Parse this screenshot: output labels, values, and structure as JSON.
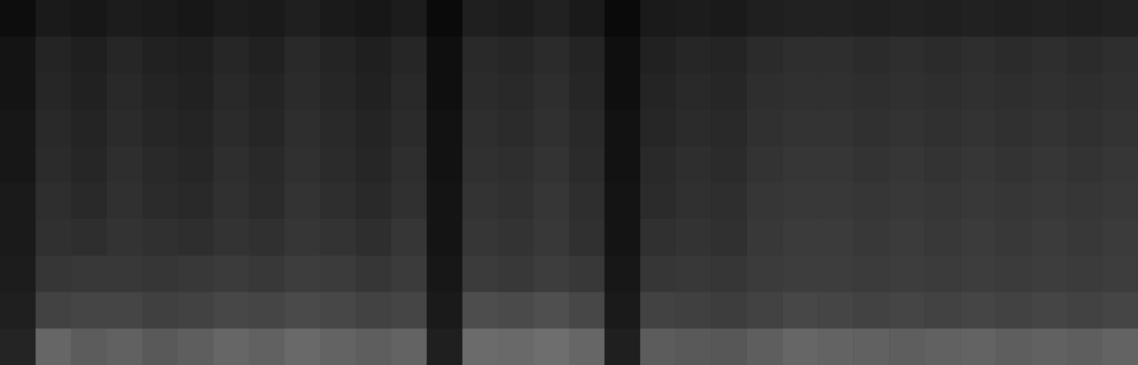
{
  "chart_data": {
    "type": "heatmap",
    "tick_labels": false,
    "zlim": [
      0,
      1
    ],
    "cells": [
      [
        0.05,
        0.1,
        0.09,
        0.11,
        0.1,
        0.09,
        0.11,
        0.1,
        0.12,
        0.1,
        0.09,
        0.11,
        0.04,
        0.12,
        0.11,
        0.13,
        0.1,
        0.04,
        0.1,
        0.11,
        0.1,
        0.12,
        0.13,
        0.13,
        0.12,
        0.13,
        0.12,
        0.13,
        0.12,
        0.13,
        0.12,
        0.13
      ],
      [
        0.08,
        0.14,
        0.12,
        0.15,
        0.13,
        0.12,
        0.15,
        0.13,
        0.16,
        0.14,
        0.12,
        0.15,
        0.06,
        0.16,
        0.15,
        0.17,
        0.14,
        0.06,
        0.13,
        0.15,
        0.14,
        0.17,
        0.18,
        0.18,
        0.17,
        0.18,
        0.17,
        0.18,
        0.17,
        0.18,
        0.17,
        0.18
      ],
      [
        0.08,
        0.15,
        0.13,
        0.16,
        0.14,
        0.13,
        0.16,
        0.14,
        0.17,
        0.15,
        0.13,
        0.16,
        0.06,
        0.17,
        0.16,
        0.18,
        0.15,
        0.06,
        0.14,
        0.16,
        0.15,
        0.18,
        0.19,
        0.19,
        0.18,
        0.19,
        0.18,
        0.19,
        0.18,
        0.19,
        0.18,
        0.19
      ],
      [
        0.09,
        0.16,
        0.14,
        0.17,
        0.15,
        0.14,
        0.17,
        0.15,
        0.18,
        0.16,
        0.14,
        0.17,
        0.07,
        0.18,
        0.17,
        0.19,
        0.16,
        0.07,
        0.15,
        0.17,
        0.16,
        0.19,
        0.2,
        0.2,
        0.19,
        0.2,
        0.19,
        0.2,
        0.19,
        0.2,
        0.19,
        0.2
      ],
      [
        0.09,
        0.17,
        0.15,
        0.18,
        0.16,
        0.15,
        0.18,
        0.16,
        0.19,
        0.17,
        0.15,
        0.18,
        0.07,
        0.19,
        0.18,
        0.2,
        0.17,
        0.07,
        0.16,
        0.18,
        0.17,
        0.2,
        0.21,
        0.21,
        0.2,
        0.21,
        0.2,
        0.21,
        0.2,
        0.21,
        0.2,
        0.21
      ],
      [
        0.1,
        0.18,
        0.16,
        0.19,
        0.17,
        0.16,
        0.19,
        0.17,
        0.2,
        0.18,
        0.16,
        0.19,
        0.08,
        0.2,
        0.19,
        0.21,
        0.18,
        0.08,
        0.17,
        0.19,
        0.18,
        0.21,
        0.22,
        0.22,
        0.21,
        0.22,
        0.21,
        0.22,
        0.21,
        0.22,
        0.21,
        0.22
      ],
      [
        0.1,
        0.19,
        0.18,
        0.2,
        0.19,
        0.18,
        0.2,
        0.19,
        0.21,
        0.2,
        0.18,
        0.21,
        0.08,
        0.21,
        0.2,
        0.22,
        0.19,
        0.08,
        0.19,
        0.2,
        0.19,
        0.22,
        0.23,
        0.23,
        0.22,
        0.23,
        0.22,
        0.23,
        0.22,
        0.23,
        0.22,
        0.23
      ],
      [
        0.11,
        0.21,
        0.22,
        0.22,
        0.21,
        0.22,
        0.23,
        0.22,
        0.24,
        0.23,
        0.21,
        0.23,
        0.09,
        0.23,
        0.22,
        0.24,
        0.22,
        0.09,
        0.21,
        0.22,
        0.21,
        0.23,
        0.24,
        0.24,
        0.23,
        0.24,
        0.23,
        0.24,
        0.23,
        0.24,
        0.23,
        0.24
      ],
      [
        0.12,
        0.26,
        0.27,
        0.27,
        0.25,
        0.26,
        0.28,
        0.27,
        0.29,
        0.28,
        0.26,
        0.27,
        0.1,
        0.3,
        0.29,
        0.31,
        0.28,
        0.1,
        0.26,
        0.25,
        0.24,
        0.26,
        0.28,
        0.27,
        0.26,
        0.27,
        0.26,
        0.27,
        0.26,
        0.27,
        0.26,
        0.27
      ],
      [
        0.14,
        0.4,
        0.36,
        0.38,
        0.35,
        0.37,
        0.4,
        0.38,
        0.41,
        0.39,
        0.37,
        0.39,
        0.12,
        0.42,
        0.41,
        0.43,
        0.4,
        0.12,
        0.36,
        0.35,
        0.34,
        0.37,
        0.4,
        0.39,
        0.38,
        0.37,
        0.38,
        0.39,
        0.37,
        0.38,
        0.37,
        0.39
      ]
    ]
  }
}
